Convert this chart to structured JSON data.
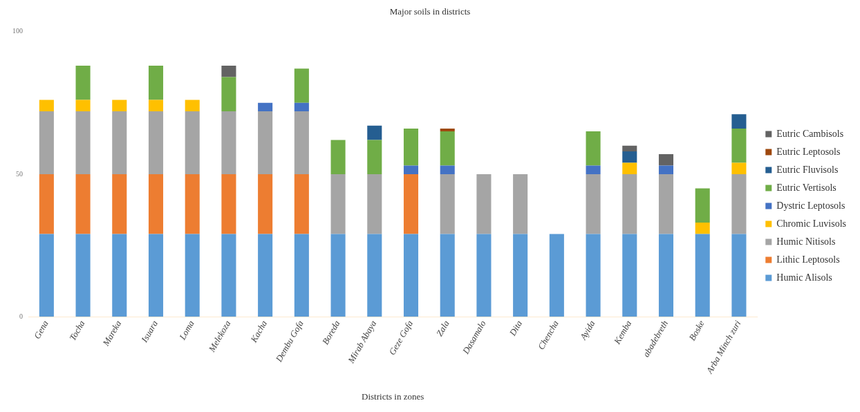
{
  "chart_data": {
    "type": "bar",
    "stacked": true,
    "title": "Major soils in districts",
    "xlabel": "Districts in zones",
    "categories": [
      "Gena",
      "Tocha",
      "Mareka",
      "Isuara",
      "Loma",
      "Melekoza",
      "Kacha",
      "Dembu Gofa",
      "Boreda",
      "Mirab Abaya",
      "Geze Gofa",
      "Zala",
      "Dasamalo",
      "Dita",
      "Chencha",
      "Ayida",
      "Kemba",
      "abadebreth",
      "Boske",
      "Arba Minch zuri"
    ],
    "ylim": [
      0,
      100
    ],
    "yticks": [
      0,
      50,
      100
    ],
    "grid": false,
    "legend": "right",
    "series": [
      {
        "name": "Humic Alisols",
        "color": "#5b9bd5",
        "values": [
          29,
          29,
          29,
          29,
          29,
          29,
          29,
          29,
          29,
          29,
          29,
          29,
          29,
          29,
          29,
          29,
          29,
          29,
          29,
          29
        ]
      },
      {
        "name": "Lithic Leptosols",
        "color": "#ed7d31",
        "values": [
          21,
          21,
          21,
          21,
          21,
          21,
          21,
          21,
          null,
          null,
          21,
          null,
          null,
          null,
          null,
          null,
          null,
          null,
          null,
          null
        ]
      },
      {
        "name": "Humic Nitisols",
        "color": "#a5a5a5",
        "values": [
          22,
          22,
          22,
          22,
          22,
          22,
          22,
          22,
          21,
          21,
          null,
          21,
          21,
          21,
          null,
          21,
          21,
          21,
          null,
          21
        ]
      },
      {
        "name": "Chromic Luvisols",
        "color": "#ffc000",
        "values": [
          4,
          4,
          4,
          4,
          4,
          null,
          null,
          null,
          null,
          null,
          null,
          null,
          null,
          null,
          null,
          null,
          4,
          null,
          4,
          4
        ]
      },
      {
        "name": "Dystric Leptosols",
        "color": "#4472c4",
        "values": [
          null,
          null,
          null,
          null,
          null,
          null,
          3,
          3,
          null,
          null,
          3,
          3,
          null,
          null,
          null,
          3,
          null,
          3,
          null,
          null
        ]
      },
      {
        "name": "Eutric Vertisols",
        "color": "#70ad47",
        "values": [
          null,
          12,
          null,
          12,
          null,
          12,
          null,
          12,
          12,
          12,
          13,
          12,
          null,
          null,
          null,
          12,
          null,
          null,
          12,
          12
        ]
      },
      {
        "name": "Eutric Fluvisols",
        "color": "#255e91",
        "values": [
          null,
          null,
          null,
          null,
          null,
          null,
          null,
          null,
          null,
          5,
          null,
          null,
          null,
          null,
          null,
          null,
          4,
          null,
          null,
          5
        ]
      },
      {
        "name": "Eutric Leptosols",
        "color": "#9e480e",
        "values": [
          null,
          null,
          null,
          null,
          null,
          null,
          null,
          null,
          null,
          null,
          null,
          1,
          null,
          null,
          null,
          null,
          null,
          null,
          null,
          null
        ]
      },
      {
        "name": "Eutric Cambisols",
        "color": "#636363",
        "values": [
          null,
          null,
          null,
          null,
          null,
          4,
          null,
          null,
          null,
          null,
          null,
          null,
          null,
          null,
          null,
          null,
          2,
          4,
          null,
          null
        ]
      }
    ]
  }
}
